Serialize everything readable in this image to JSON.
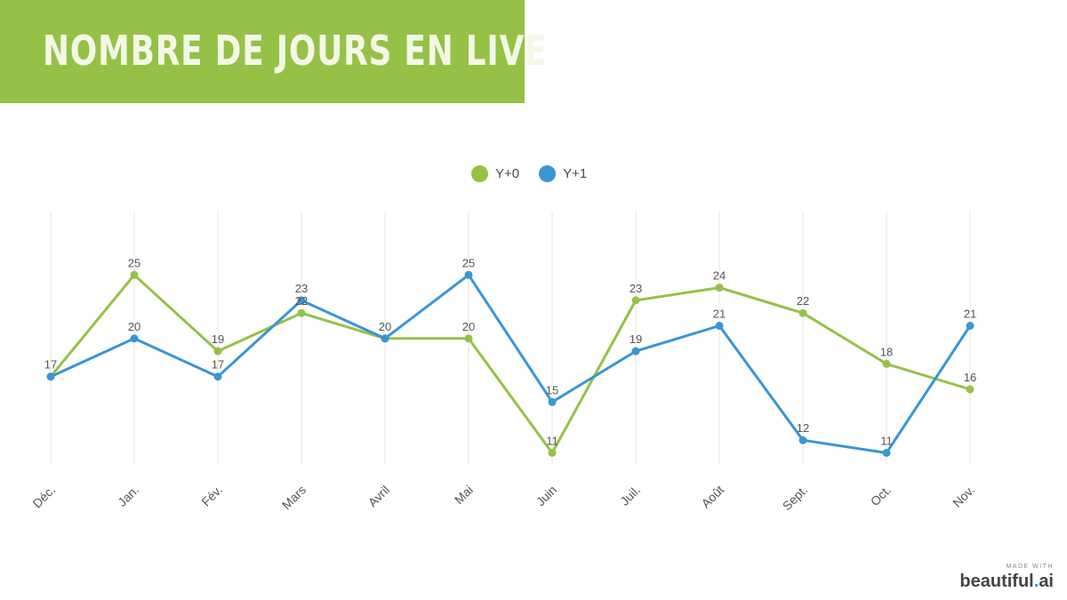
{
  "title": "NOMBRE DE JOURS EN LIVE",
  "branding": {
    "made_with": "MADE WITH",
    "logo_main": "beautiful",
    "logo_dot": ".",
    "logo_suffix": "ai"
  },
  "chart_data": {
    "type": "line",
    "categories": [
      "Déc.",
      "Jan.",
      "Fév.",
      "Mars",
      "Avril",
      "Mai",
      "Juin",
      "Juil.",
      "Août",
      "Sept.",
      "Oct.",
      "Nov."
    ],
    "series": [
      {
        "name": "Y+0",
        "color": "#96c147",
        "values": [
          17,
          25,
          19,
          22,
          20,
          20,
          11,
          23,
          24,
          22,
          18,
          16
        ]
      },
      {
        "name": "Y+1",
        "color": "#3a95d6",
        "values": [
          17,
          20,
          17,
          23,
          20,
          25,
          15,
          19,
          21,
          12,
          11,
          21
        ]
      }
    ],
    "ylim": [
      11,
      25
    ],
    "legend": "top-center",
    "grid": "vertical"
  }
}
